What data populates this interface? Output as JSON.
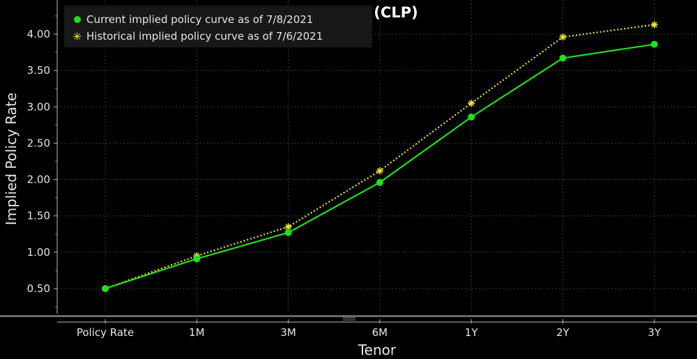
{
  "chart_data": {
    "type": "line",
    "title": "Chile (CLP)",
    "xlabel": "Tenor",
    "ylabel": "Implied Policy Rate",
    "categories": [
      "Policy Rate",
      "1M",
      "3M",
      "6M",
      "1Y",
      "2Y",
      "3Y"
    ],
    "ylim": [
      0.25,
      4.25
    ],
    "yticks": [
      "0.50",
      "1.00",
      "1.50",
      "2.00",
      "2.50",
      "3.00",
      "3.50",
      "4.00"
    ],
    "grid": true,
    "legend_position": "top-left",
    "series": [
      {
        "name": "Current implied policy curve as of 7/8/2021",
        "color": "#22e01a",
        "marker": "circle",
        "style": "solid",
        "values": [
          0.5,
          0.91,
          1.27,
          1.96,
          2.86,
          3.67,
          3.86
        ]
      },
      {
        "name": "Historical implied policy curve as of 7/6/2021",
        "color": "#f2ea2a",
        "marker": "star",
        "style": "dotted",
        "values": [
          0.5,
          0.95,
          1.35,
          2.12,
          3.05,
          3.96,
          4.13
        ]
      }
    ]
  }
}
